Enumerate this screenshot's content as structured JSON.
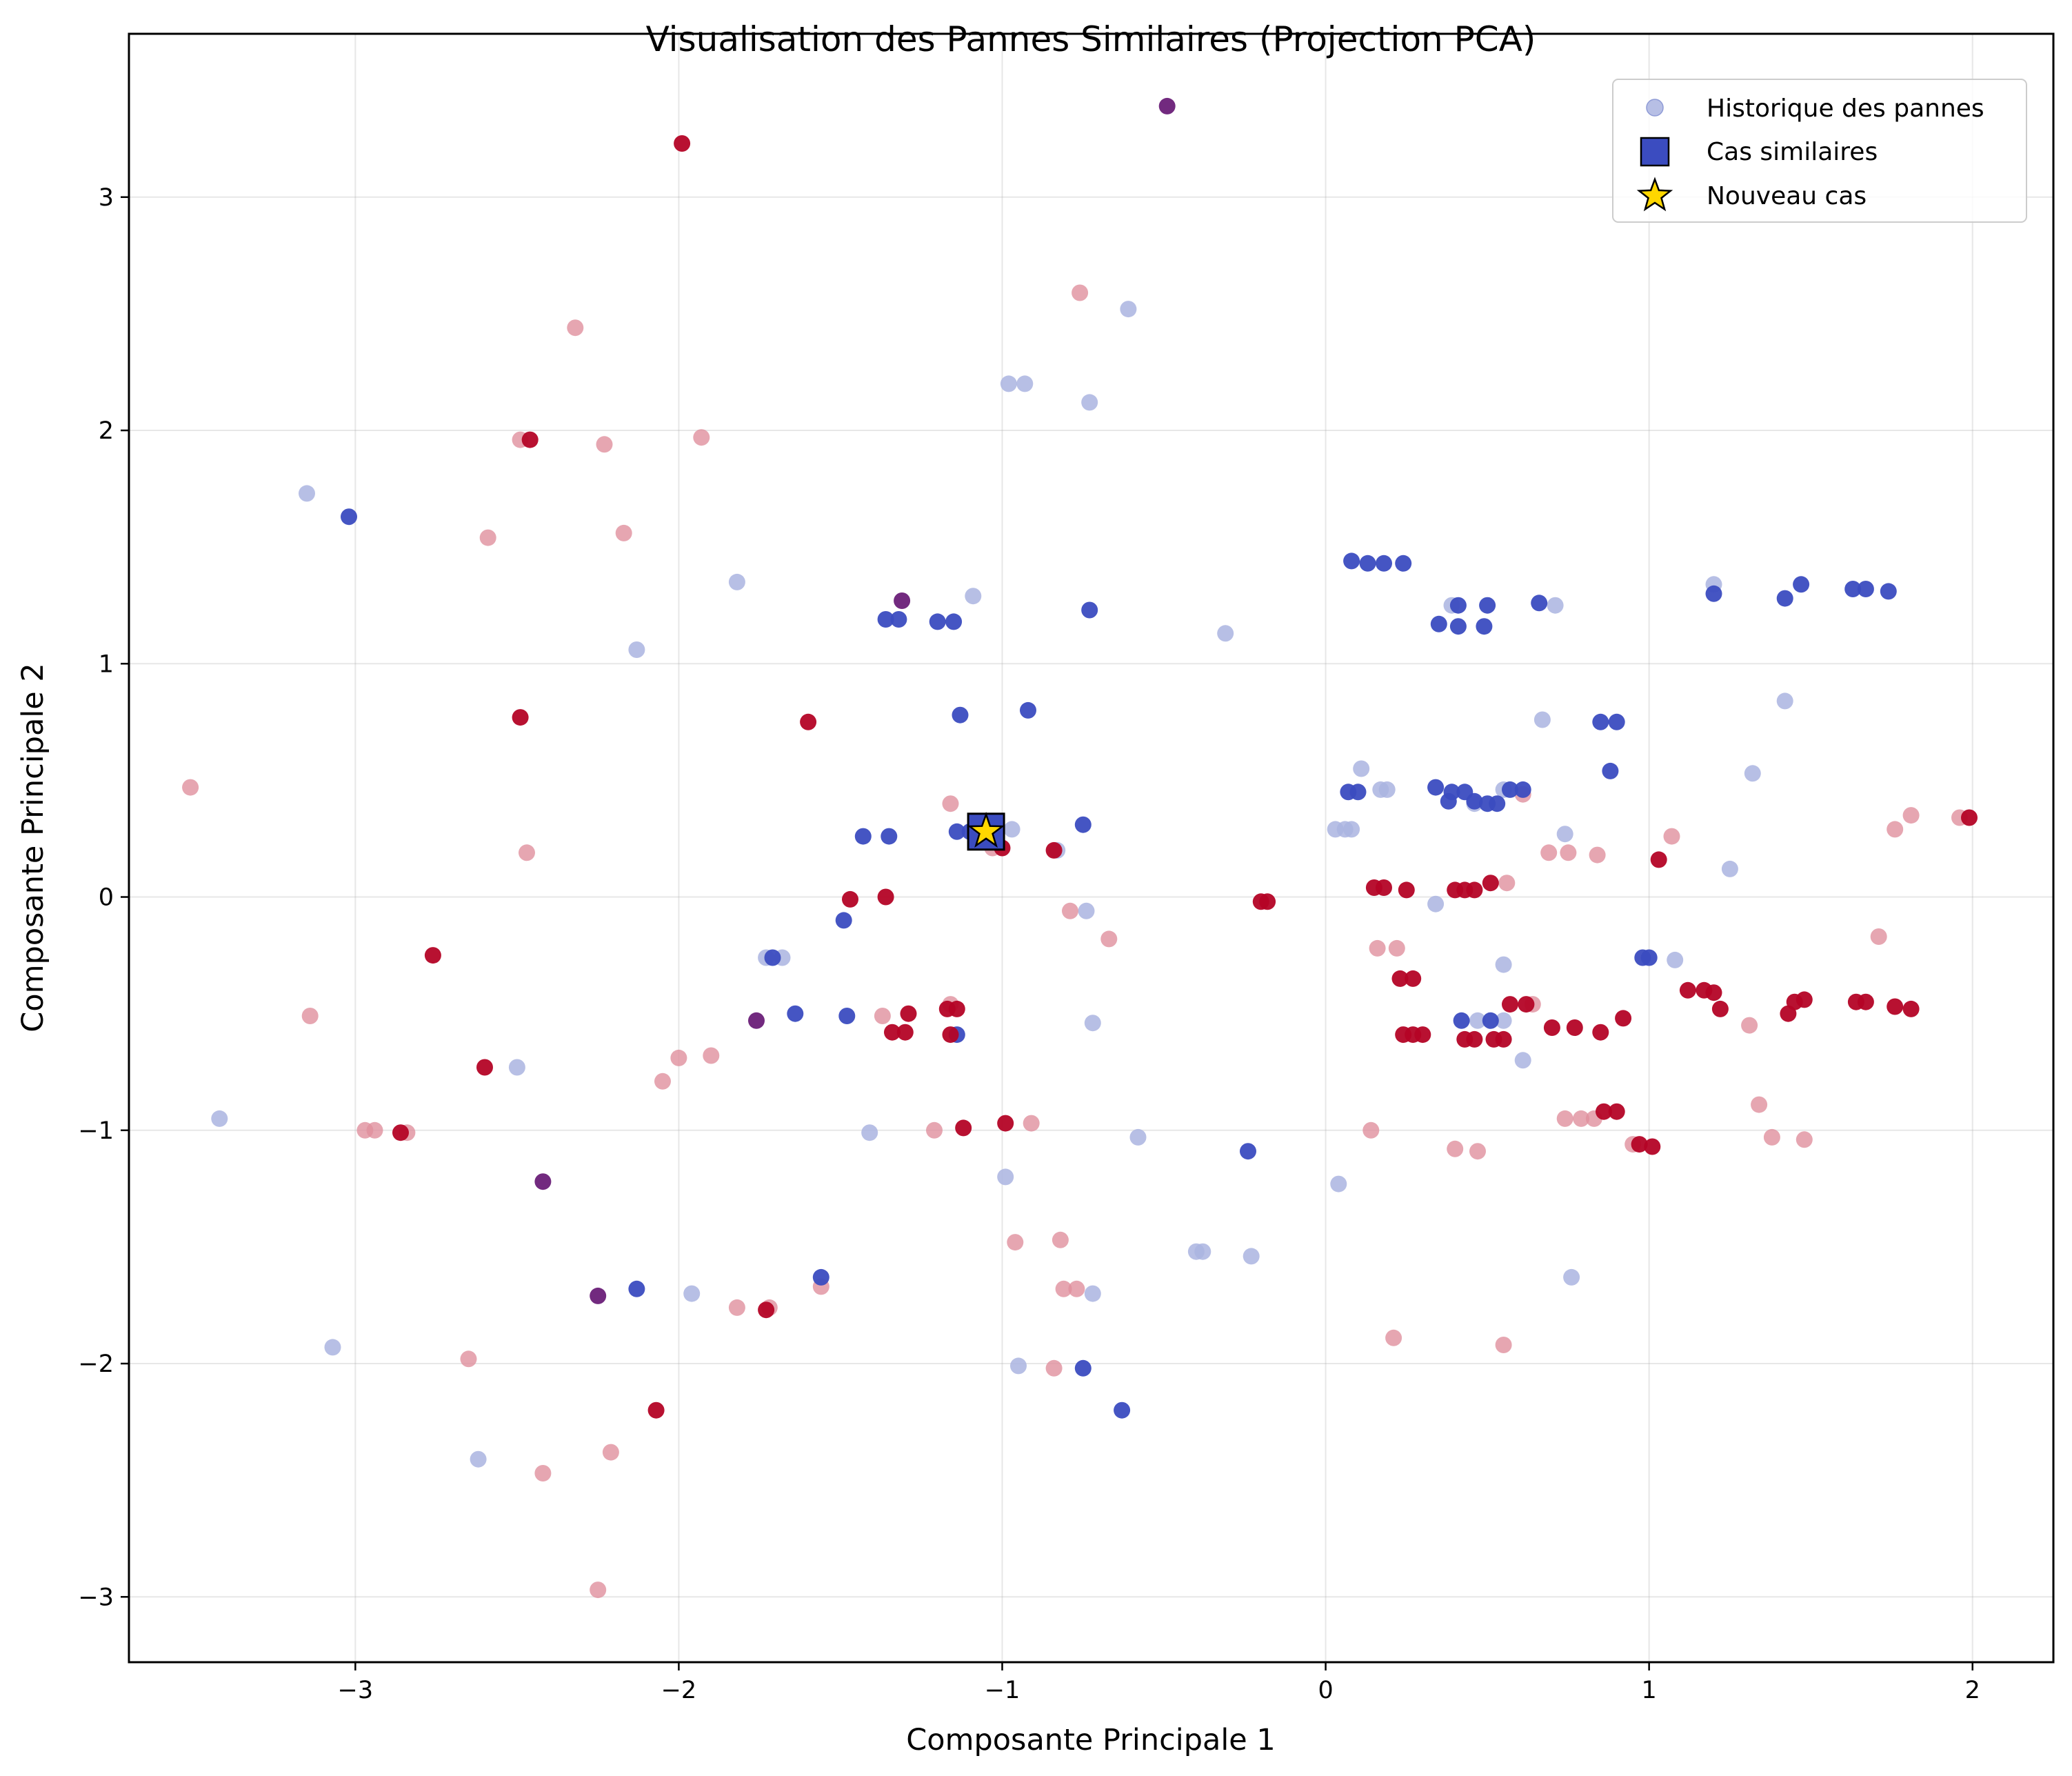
{
  "chart_data": {
    "type": "scatter",
    "title": "Visualisation des Pannes Similaires (Projection PCA)",
    "xlabel": "Composante Principale 1",
    "ylabel": "Composante Principale 2",
    "xlim": [
      -3.7,
      2.25
    ],
    "ylim": [
      -3.28,
      3.7
    ],
    "xticks": [
      -3,
      -2,
      -1,
      0,
      1,
      2
    ],
    "yticks": [
      -3,
      -2,
      -1,
      0,
      1,
      2,
      3
    ],
    "xtick_labels": [
      "−3",
      "−2",
      "−1",
      "0",
      "1",
      "2"
    ],
    "ytick_labels": [
      "−3",
      "−2",
      "−1",
      "0",
      "1",
      "2",
      "3"
    ],
    "grid": true,
    "legend_position": "top-right",
    "legend": [
      "Historique des pannes",
      "Cas similaires",
      "Nouveau cas"
    ],
    "colors": {
      "blue": "#3b4cc0",
      "red": "#b40426",
      "purple": "#6a1f78",
      "light_blue": "#aab4e0",
      "light_red": "#e0909e",
      "star": "#ffd700"
    },
    "series": [
      {
        "name": "Historique des pannes",
        "marker": "circle",
        "points": [
          [
            -3.15,
            1.73
          ],
          [
            -2.13,
            1.06
          ],
          [
            -1.82,
            1.35
          ],
          [
            -1.09,
            1.29
          ],
          [
            -0.98,
            2.2
          ],
          [
            -0.93,
            2.2
          ],
          [
            -0.73,
            2.12
          ],
          [
            -0.61,
            2.52
          ],
          [
            -0.31,
            1.13
          ],
          [
            -1.73,
            -0.26
          ],
          [
            -1.68,
            -0.26
          ],
          [
            -2.5,
            -0.73
          ],
          [
            -3.42,
            -0.95
          ],
          [
            -1.41,
            -1.01
          ],
          [
            -0.99,
            -1.2
          ],
          [
            -0.58,
            -1.03
          ],
          [
            -0.72,
            -0.54
          ],
          [
            -1.96,
            -1.7
          ],
          [
            -3.07,
            -1.93
          ],
          [
            -2.62,
            -2.41
          ],
          [
            -0.95,
            -2.01
          ],
          [
            -0.72,
            -1.7
          ],
          [
            -0.4,
            -1.52
          ],
          [
            -0.38,
            -1.52
          ],
          [
            -0.23,
            -1.54
          ],
          [
            -0.74,
            -0.06
          ],
          [
            -0.83,
            0.2
          ],
          [
            -0.97,
            0.29
          ],
          [
            0.04,
            -1.23
          ],
          [
            0.76,
            -1.63
          ],
          [
            0.03,
            0.29
          ],
          [
            0.06,
            0.29
          ],
          [
            0.08,
            0.29
          ],
          [
            0.11,
            0.55
          ],
          [
            0.17,
            0.46
          ],
          [
            0.19,
            0.46
          ],
          [
            0.34,
            -0.03
          ],
          [
            0.55,
            -0.29
          ],
          [
            0.61,
            -0.7
          ],
          [
            0.47,
            -0.53
          ],
          [
            0.55,
            -0.53
          ],
          [
            0.67,
            0.76
          ],
          [
            0.71,
            1.25
          ],
          [
            0.74,
            0.27
          ],
          [
            1.08,
            -0.27
          ],
          [
            1.2,
            1.34
          ],
          [
            1.25,
            0.12
          ],
          [
            1.32,
            0.53
          ],
          [
            1.42,
            0.84
          ],
          [
            0.39,
            1.25
          ],
          [
            0.46,
            0.4
          ],
          [
            0.55,
            0.46
          ]
        ],
        "color": "#aab4e0"
      },
      {
        "name": "Historique des pannes (rouge)",
        "marker": "circle",
        "points": [
          [
            -3.51,
            0.47
          ],
          [
            -3.14,
            -0.51
          ],
          [
            -2.97,
            -1.0
          ],
          [
            -2.94,
            -1.0
          ],
          [
            -2.84,
            -1.01
          ],
          [
            -2.32,
            2.44
          ],
          [
            -2.49,
            1.96
          ],
          [
            -2.59,
            1.54
          ],
          [
            -2.23,
            1.94
          ],
          [
            -2.17,
            1.56
          ],
          [
            -1.93,
            1.97
          ],
          [
            -2.47,
            0.19
          ],
          [
            -2.0,
            -0.69
          ],
          [
            -1.9,
            -0.68
          ],
          [
            -2.05,
            -0.79
          ],
          [
            -1.82,
            -1.76
          ],
          [
            -1.72,
            -1.76
          ],
          [
            -1.56,
            -1.67
          ],
          [
            -2.65,
            -1.98
          ],
          [
            -2.21,
            -2.38
          ],
          [
            -2.42,
            -2.47
          ],
          [
            -2.25,
            -2.97
          ],
          [
            -1.37,
            -0.51
          ],
          [
            -1.21,
            -1.0
          ],
          [
            -1.16,
            0.4
          ],
          [
            -1.16,
            -0.46
          ],
          [
            -0.96,
            -1.48
          ],
          [
            -0.91,
            -0.97
          ],
          [
            -0.82,
            -1.47
          ],
          [
            -0.81,
            -1.68
          ],
          [
            -0.77,
            -1.68
          ],
          [
            -0.84,
            -2.02
          ],
          [
            -0.76,
            2.59
          ],
          [
            -0.79,
            -0.06
          ],
          [
            -0.67,
            -0.18
          ],
          [
            -1.03,
            0.21
          ],
          [
            0.14,
            -1.0
          ],
          [
            0.16,
            -0.22
          ],
          [
            0.22,
            -0.22
          ],
          [
            0.21,
            -1.89
          ],
          [
            0.4,
            -1.08
          ],
          [
            0.47,
            -1.09
          ],
          [
            0.55,
            -1.92
          ],
          [
            0.56,
            0.06
          ],
          [
            0.64,
            -0.46
          ],
          [
            0.69,
            0.19
          ],
          [
            0.75,
            0.19
          ],
          [
            0.74,
            -0.95
          ],
          [
            0.79,
            -0.95
          ],
          [
            0.84,
            0.18
          ],
          [
            0.83,
            -0.95
          ],
          [
            0.95,
            -1.06
          ],
          [
            1.07,
            0.26
          ],
          [
            1.31,
            -0.55
          ],
          [
            1.34,
            -0.89
          ],
          [
            1.38,
            -1.03
          ],
          [
            1.48,
            -1.04
          ],
          [
            1.71,
            -0.17
          ],
          [
            1.76,
            0.29
          ],
          [
            1.81,
            0.35
          ],
          [
            1.96,
            0.34
          ],
          [
            0.61,
            0.44
          ]
        ],
        "color": "#e0909e"
      },
      {
        "name": "Cas similaires",
        "marker": "circle",
        "points": [
          [
            -3.02,
            1.63
          ],
          [
            -1.36,
            1.19
          ],
          [
            -1.32,
            1.19
          ],
          [
            -1.2,
            1.18
          ],
          [
            -1.15,
            1.18
          ],
          [
            -1.13,
            0.78
          ],
          [
            -0.92,
            0.8
          ],
          [
            -0.73,
            1.23
          ],
          [
            -1.43,
            0.26
          ],
          [
            -1.35,
            0.26
          ],
          [
            -1.14,
            0.28
          ],
          [
            -1.1,
            0.28
          ],
          [
            -0.75,
            0.31
          ],
          [
            -1.49,
            -0.1
          ],
          [
            -1.71,
            -0.26
          ],
          [
            -1.64,
            -0.5
          ],
          [
            -1.48,
            -0.51
          ],
          [
            -1.14,
            -0.59
          ],
          [
            -2.13,
            -1.68
          ],
          [
            -1.56,
            -1.63
          ],
          [
            -0.24,
            -1.09
          ],
          [
            -0.75,
            -2.02
          ],
          [
            -0.63,
            -2.2
          ],
          [
            0.08,
            1.44
          ],
          [
            0.13,
            1.43
          ],
          [
            0.18,
            1.43
          ],
          [
            0.24,
            1.43
          ],
          [
            0.35,
            1.17
          ],
          [
            0.41,
            1.16
          ],
          [
            0.49,
            1.16
          ],
          [
            0.41,
            1.25
          ],
          [
            0.5,
            1.25
          ],
          [
            0.66,
            1.26
          ],
          [
            0.07,
            0.45
          ],
          [
            0.1,
            0.45
          ],
          [
            0.34,
            0.47
          ],
          [
            0.39,
            0.45
          ],
          [
            0.43,
            0.45
          ],
          [
            0.38,
            0.41
          ],
          [
            0.46,
            0.41
          ],
          [
            0.5,
            0.4
          ],
          [
            0.53,
            0.4
          ],
          [
            0.57,
            0.46
          ],
          [
            0.61,
            0.46
          ],
          [
            0.88,
            0.54
          ],
          [
            0.85,
            0.75
          ],
          [
            0.9,
            0.75
          ],
          [
            0.98,
            -0.26
          ],
          [
            1.0,
            -0.26
          ],
          [
            0.42,
            -0.53
          ],
          [
            0.51,
            -0.53
          ],
          [
            1.2,
            1.3
          ],
          [
            1.42,
            1.28
          ],
          [
            1.47,
            1.34
          ],
          [
            1.63,
            1.32
          ],
          [
            1.67,
            1.32
          ],
          [
            1.74,
            1.31
          ]
        ],
        "color": "#3b4cc0"
      },
      {
        "name": "Cas similaires (rouge)",
        "marker": "circle",
        "points": [
          [
            -1.99,
            3.23
          ],
          [
            -2.49,
            0.77
          ],
          [
            -2.46,
            1.96
          ],
          [
            -1.6,
            0.75
          ],
          [
            -2.76,
            -0.25
          ],
          [
            -2.6,
            -0.73
          ],
          [
            -2.86,
            -1.01
          ],
          [
            -2.07,
            -2.2
          ],
          [
            -1.73,
            -1.77
          ],
          [
            -1.36,
            0.0
          ],
          [
            -1.47,
            -0.01
          ],
          [
            -1.34,
            -0.58
          ],
          [
            -1.3,
            -0.58
          ],
          [
            -1.29,
            -0.5
          ],
          [
            -1.17,
            -0.48
          ],
          [
            -1.14,
            -0.48
          ],
          [
            -1.16,
            -0.59
          ],
          [
            -1.12,
            -0.99
          ],
          [
            -0.99,
            -0.97
          ],
          [
            -1.0,
            0.21
          ],
          [
            -0.84,
            0.2
          ],
          [
            -0.2,
            -0.02
          ],
          [
            -0.18,
            -0.02
          ],
          [
            0.15,
            0.04
          ],
          [
            0.18,
            0.04
          ],
          [
            0.25,
            0.03
          ],
          [
            0.23,
            -0.35
          ],
          [
            0.27,
            -0.35
          ],
          [
            0.24,
            -0.59
          ],
          [
            0.27,
            -0.59
          ],
          [
            0.3,
            -0.59
          ],
          [
            0.4,
            0.03
          ],
          [
            0.43,
            0.03
          ],
          [
            0.46,
            0.03
          ],
          [
            0.51,
            0.06
          ],
          [
            0.43,
            -0.61
          ],
          [
            0.46,
            -0.61
          ],
          [
            0.52,
            -0.61
          ],
          [
            0.55,
            -0.61
          ],
          [
            0.57,
            -0.46
          ],
          [
            0.62,
            -0.46
          ],
          [
            0.7,
            -0.56
          ],
          [
            0.77,
            -0.56
          ],
          [
            0.85,
            -0.58
          ],
          [
            0.86,
            -0.92
          ],
          [
            0.9,
            -0.92
          ],
          [
            0.97,
            -1.06
          ],
          [
            1.01,
            -1.07
          ],
          [
            1.03,
            0.16
          ],
          [
            0.92,
            -0.52
          ],
          [
            1.12,
            -0.4
          ],
          [
            1.17,
            -0.4
          ],
          [
            1.2,
            -0.41
          ],
          [
            1.22,
            -0.48
          ],
          [
            1.43,
            -0.5
          ],
          [
            1.45,
            -0.45
          ],
          [
            1.48,
            -0.44
          ],
          [
            1.64,
            -0.45
          ],
          [
            1.67,
            -0.45
          ],
          [
            1.76,
            -0.47
          ],
          [
            1.81,
            -0.48
          ],
          [
            1.99,
            0.34
          ]
        ],
        "color": "#b40426"
      },
      {
        "name": "Cas similaires (violet)",
        "marker": "circle",
        "points": [
          [
            -0.49,
            3.39
          ],
          [
            -1.31,
            1.27
          ],
          [
            -1.76,
            -0.53
          ],
          [
            -2.42,
            -1.22
          ],
          [
            -2.25,
            -1.71
          ]
        ],
        "color": "#6a1f78"
      },
      {
        "name": "Nouveau cas",
        "marker": "star",
        "points": [
          [
            -1.05,
            0.28
          ]
        ],
        "color": "#ffd700"
      }
    ]
  }
}
